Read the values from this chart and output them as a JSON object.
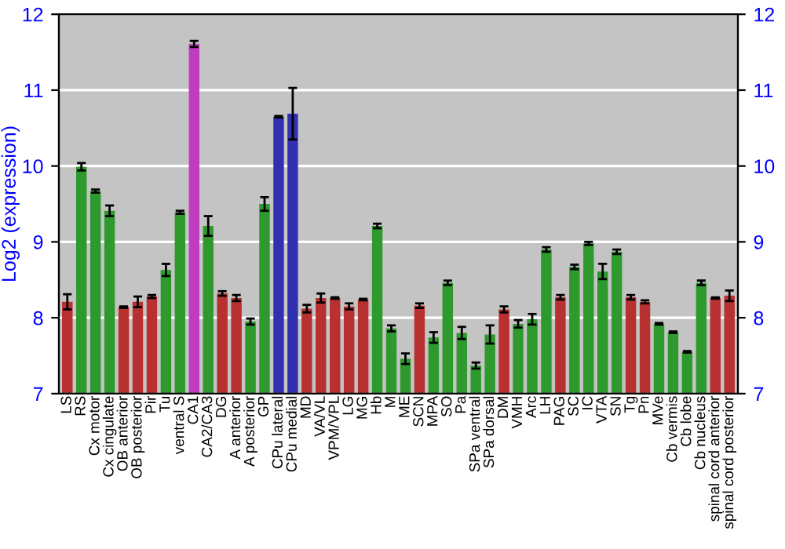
{
  "chart_data": {
    "type": "bar",
    "ylabel": "Log2 (expression)",
    "categories": [
      "LS",
      "RS",
      "Cx motor",
      "Cx cingulate",
      "OB anterior",
      "OB posterior",
      "Pir",
      "Tu",
      "ventral S",
      "CA1",
      "CA2/CA3",
      "DG",
      "A anterior",
      "A posterior",
      "GP",
      "CPu lateral",
      "CPu medial",
      "MD",
      "VA/VL",
      "VPM/VPL",
      "LG",
      "MG",
      "Hb",
      "M",
      "ME",
      "SCN",
      "MPA",
      "SO",
      "Pa",
      "SPa ventral",
      "SPa dorsal",
      "DM",
      "VMH",
      "Arc",
      "LH",
      "PAG",
      "SC",
      "IC",
      "VTA",
      "SN",
      "Tg",
      "Pn",
      "MVe",
      "Cb vermis",
      "Cb lobe",
      "Cb nucleus",
      "spinal cord anterior",
      "spinal cord posterior"
    ],
    "values": [
      8.21,
      9.99,
      9.67,
      9.41,
      8.14,
      8.21,
      8.28,
      8.63,
      9.39,
      11.61,
      9.21,
      8.32,
      8.26,
      7.95,
      9.5,
      10.65,
      10.69,
      8.12,
      8.26,
      8.26,
      8.15,
      8.24,
      9.21,
      7.86,
      7.46,
      8.16,
      7.74,
      8.46,
      7.8,
      7.37,
      7.78,
      8.11,
      7.92,
      7.98,
      8.9,
      8.27,
      8.67,
      8.98,
      8.61,
      8.87,
      8.27,
      8.21,
      7.92,
      7.81,
      7.55,
      8.46,
      8.26,
      8.29
    ],
    "errors": [
      0.1,
      0.05,
      0.02,
      0.07,
      0.01,
      0.07,
      0.02,
      0.08,
      0.02,
      0.04,
      0.13,
      0.03,
      0.04,
      0.04,
      0.09,
      0.01,
      0.34,
      0.05,
      0.06,
      0.01,
      0.04,
      0.01,
      0.03,
      0.04,
      0.07,
      0.03,
      0.07,
      0.03,
      0.08,
      0.04,
      0.12,
      0.04,
      0.05,
      0.07,
      0.03,
      0.03,
      0.03,
      0.02,
      0.1,
      0.03,
      0.03,
      0.02,
      0.01,
      0.01,
      0.01,
      0.03,
      0.01,
      0.07
    ],
    "colors": [
      "#b83030",
      "#2e9a2e",
      "#2e9a2e",
      "#2e9a2e",
      "#b83030",
      "#b83030",
      "#b83030",
      "#2e9a2e",
      "#2e9a2e",
      "#c03cc0",
      "#2e9a2e",
      "#b83030",
      "#b83030",
      "#2e9a2e",
      "#2e9a2e",
      "#3030b0",
      "#3030b0",
      "#b83030",
      "#b83030",
      "#b83030",
      "#b83030",
      "#b83030",
      "#2e9a2e",
      "#2e9a2e",
      "#2e9a2e",
      "#b83030",
      "#2e9a2e",
      "#2e9a2e",
      "#2e9a2e",
      "#2e9a2e",
      "#2e9a2e",
      "#b83030",
      "#2e9a2e",
      "#2e9a2e",
      "#2e9a2e",
      "#b83030",
      "#2e9a2e",
      "#2e9a2e",
      "#2e9a2e",
      "#2e9a2e",
      "#b83030",
      "#b83030",
      "#2e9a2e",
      "#2e9a2e",
      "#2e9a2e",
      "#2e9a2e",
      "#b83030",
      "#b83030"
    ],
    "ylim": [
      7,
      12
    ],
    "yticks": [
      7,
      8,
      9,
      10,
      11,
      12
    ],
    "y2lim": [
      7,
      12
    ],
    "y2ticks": [
      7,
      8,
      9,
      10,
      11,
      12
    ],
    "grid": "y"
  }
}
